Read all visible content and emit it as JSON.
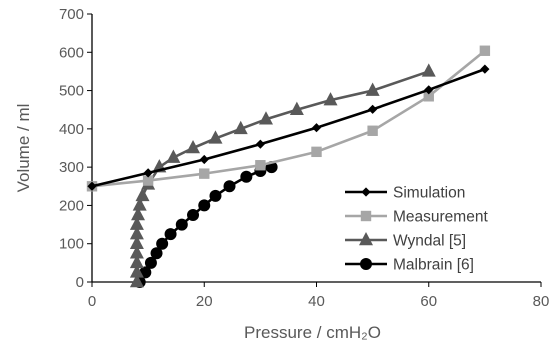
{
  "chart_data": {
    "type": "line",
    "xlabel": "Pressure / cmH₂O",
    "ylabel": "Volume / ml",
    "xlim": [
      0,
      80
    ],
    "ylim": [
      0,
      700
    ],
    "xticks": [
      0,
      20,
      40,
      60,
      80
    ],
    "yticks": [
      0,
      100,
      200,
      300,
      400,
      500,
      600,
      700
    ],
    "grid": false,
    "legend_position": "bottom-right",
    "series": [
      {
        "name": "Simulation",
        "color": "#000000",
        "marker": "diamond",
        "x": [
          0,
          10,
          20,
          30,
          40,
          50,
          60,
          70
        ],
        "y": [
          250,
          285,
          320,
          360,
          403,
          451,
          502,
          556
        ]
      },
      {
        "name": "Measurement",
        "color": "#a6a6a6",
        "marker": "square",
        "x": [
          0,
          10,
          20,
          30,
          40,
          50,
          60,
          70
        ],
        "y": [
          250,
          265,
          283,
          305,
          340,
          395,
          485,
          604
        ]
      },
      {
        "name": "Wyndal [5]",
        "color": "#595959",
        "marker": "triangle",
        "x": [
          8,
          8,
          8,
          8,
          8,
          8,
          8,
          8.2,
          8.5,
          9,
          10,
          12,
          14.5,
          18,
          22,
          26.5,
          31,
          36.5,
          42.5,
          50,
          60
        ],
        "y": [
          0,
          25,
          50,
          75,
          100,
          125,
          150,
          175,
          200,
          225,
          255,
          300,
          325,
          350,
          375,
          400,
          425,
          450,
          475,
          500,
          550
        ]
      },
      {
        "name": "Malbrain [6]",
        "color": "#000000",
        "marker": "circle",
        "x": [
          8.5,
          9.5,
          10.5,
          11.5,
          12.5,
          14,
          16,
          18,
          20,
          22,
          24.5,
          27.5,
          30,
          32
        ],
        "y": [
          0,
          25,
          50,
          75,
          100,
          125,
          150,
          175,
          200,
          225,
          250,
          275,
          290,
          300
        ]
      }
    ]
  }
}
